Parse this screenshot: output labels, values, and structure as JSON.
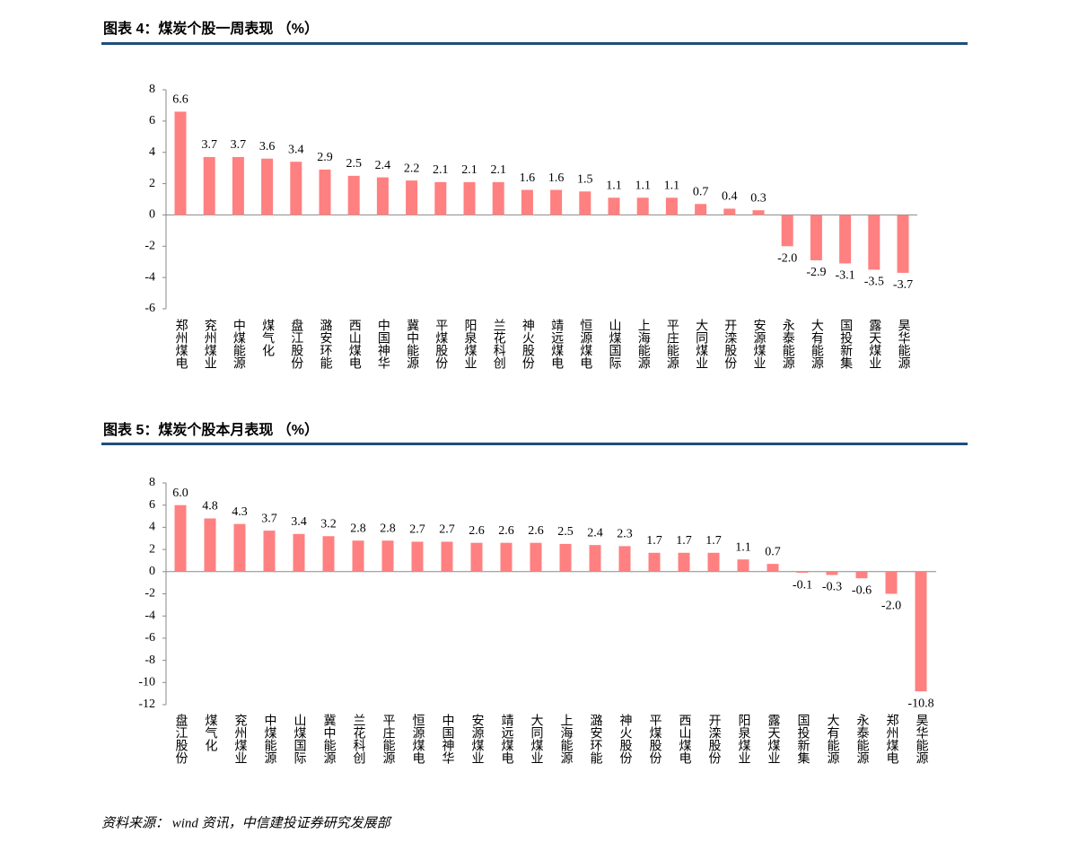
{
  "chart_data": [
    {
      "type": "bar",
      "title": "图表 4：煤炭个股一周表现 （%）",
      "color": "#ff8080",
      "categories": [
        "郑州煤电",
        "兖州煤业",
        "中煤能源",
        "煤气化",
        "盘江股份",
        "潞安环能",
        "西山煤电",
        "中国神华",
        "冀中能源",
        "平煤股份",
        "阳泉煤业",
        "兰花科创",
        "神火股份",
        "靖远煤电",
        "恒源煤电",
        "山煤国际",
        "上海能源",
        "平庄能源",
        "大同煤业",
        "开滦股份",
        "安源煤业",
        "永泰能源",
        "大有能源",
        "国投新集",
        "露天煤业",
        "昊华能源"
      ],
      "values": [
        6.6,
        3.7,
        3.7,
        3.6,
        3.4,
        2.9,
        2.5,
        2.4,
        2.2,
        2.1,
        2.1,
        2.1,
        1.6,
        1.6,
        1.5,
        1.1,
        1.1,
        1.1,
        0.7,
        0.4,
        0.3,
        -2.0,
        -2.9,
        -3.1,
        -3.5,
        -3.7
      ],
      "value_labels": [
        "6.6",
        "3.7",
        "3.7",
        "3.6",
        "3.4",
        "2.9",
        "2.5",
        "2.4",
        "2.2",
        "2.1",
        "2.1",
        "2.1",
        "1.6",
        "1.6",
        "1.5",
        "1.1",
        "1.1",
        "1.1",
        "0.7",
        "0.4",
        "0.3",
        "-2.0",
        "-2.9",
        "-3.1",
        "-3.5",
        "-3.7"
      ],
      "ylim": [
        -6,
        8
      ],
      "yticks": [
        -6,
        -4,
        -2,
        0,
        2,
        4,
        6,
        8
      ]
    },
    {
      "type": "bar",
      "title": "图表 5：煤炭个股本月表现 （%）",
      "color": "#ff8080",
      "categories": [
        "盘江股份",
        "煤气化",
        "兖州煤业",
        "中煤能源",
        "山煤国际",
        "冀中能源",
        "兰花科创",
        "平庄能源",
        "恒源煤电",
        "中国神华",
        "安源煤业",
        "靖远煤电",
        "大同煤业",
        "上海能源",
        "潞安环能",
        "神火股份",
        "平煤股份",
        "西山煤电",
        "开滦股份",
        "阳泉煤业",
        "露天煤业",
        "国投新集",
        "大有能源",
        "永泰能源",
        "郑州煤电",
        "昊华能源"
      ],
      "values": [
        6.0,
        4.8,
        4.3,
        3.7,
        3.4,
        3.2,
        2.8,
        2.8,
        2.7,
        2.7,
        2.6,
        2.6,
        2.6,
        2.5,
        2.4,
        2.3,
        1.7,
        1.7,
        1.7,
        1.1,
        0.7,
        -0.1,
        -0.3,
        -0.6,
        -2.0,
        -10.8
      ],
      "value_labels": [
        "6.0",
        "4.8",
        "4.3",
        "3.7",
        "3.4",
        "3.2",
        "2.8",
        "2.8",
        "2.7",
        "2.7",
        "2.6",
        "2.6",
        "2.6",
        "2.5",
        "2.4",
        "2.3",
        "1.7",
        "1.7",
        "1.7",
        "1.1",
        "0.7",
        "-0.1",
        "-0.3",
        "-0.6",
        "-2.0",
        "-10.8"
      ],
      "ylim": [
        -12,
        8
      ],
      "yticks": [
        -12,
        -10,
        -8,
        -6,
        -4,
        -2,
        0,
        2,
        4,
        6,
        8
      ]
    }
  ],
  "source": "资料来源： wind 资讯，中信建投证券研究发展部"
}
